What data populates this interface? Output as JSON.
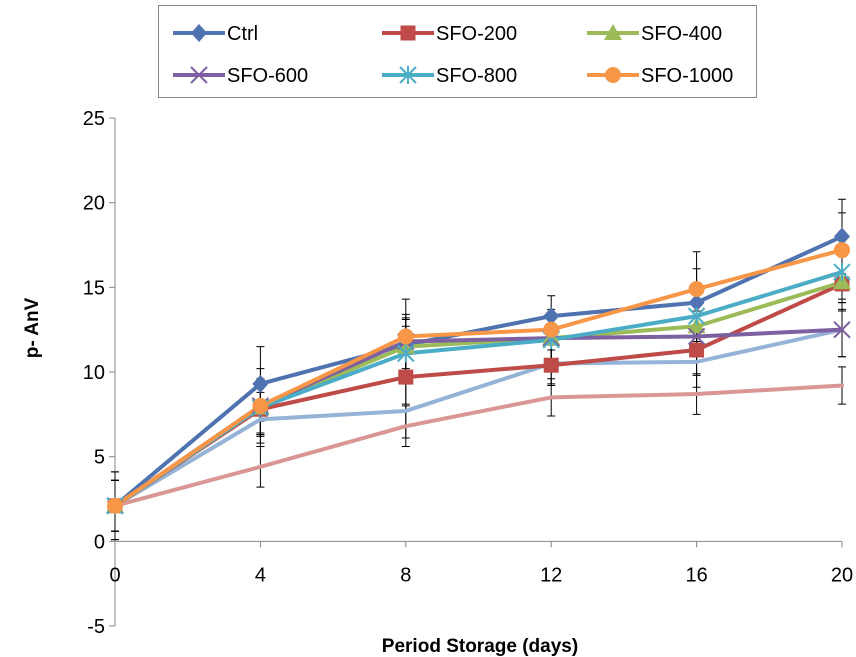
{
  "chart_data": {
    "type": "line",
    "title": "",
    "xlabel": "Period Storage (days)",
    "ylabel": "p- AnV",
    "x": [
      0,
      4,
      8,
      12,
      16,
      20
    ],
    "ylim": [
      -5,
      25
    ],
    "yticks": [
      -5,
      0,
      5,
      10,
      15,
      20,
      25
    ],
    "grid": false,
    "legend_position": "top",
    "series": [
      {
        "name": "Ctrl",
        "color": "#4f73b0",
        "marker": "diamond",
        "values": [
          2.1,
          9.3,
          11.6,
          13.3,
          14.1,
          18.0
        ],
        "error": [
          2.0,
          2.2,
          1.6,
          1.2,
          2.0,
          2.2
        ]
      },
      {
        "name": "SFO-200",
        "color": "#be4b48",
        "marker": "square",
        "values": [
          2.1,
          7.8,
          9.7,
          10.4,
          11.3,
          15.2
        ],
        "error": [
          1.5,
          1.6,
          1.6,
          1.2,
          1.5,
          1.6
        ]
      },
      {
        "name": "SFO-400",
        "color": "#9bbb59",
        "marker": "triangle",
        "values": [
          2.1,
          7.9,
          11.5,
          12.0,
          12.7,
          15.3
        ],
        "error": [
          1.5,
          1.6,
          1.6,
          1.2,
          1.5,
          1.6
        ]
      },
      {
        "name": "SFO-600",
        "color": "#7d60a0",
        "marker": "x",
        "values": [
          2.1,
          8.0,
          11.8,
          12.0,
          12.1,
          12.5
        ],
        "error": [
          1.5,
          1.6,
          1.6,
          1.2,
          1.5,
          1.6
        ]
      },
      {
        "name": "SFO-800",
        "color": "#4bacc6",
        "marker": "asterisk",
        "values": [
          2.1,
          7.9,
          11.1,
          11.9,
          13.3,
          15.9
        ],
        "error": [
          1.5,
          1.6,
          1.6,
          1.2,
          1.5,
          1.6
        ]
      },
      {
        "name": "SFO-1000",
        "color": "#f79646",
        "marker": "circle",
        "values": [
          2.1,
          8.0,
          12.1,
          12.5,
          14.9,
          17.2
        ],
        "error": [
          2.0,
          2.2,
          2.2,
          1.2,
          2.2,
          2.2
        ]
      },
      {
        "name": "",
        "color": "#95b3d7",
        "marker": "none",
        "values": [
          2.1,
          7.2,
          7.7,
          10.5,
          10.6,
          12.5
        ],
        "error": [
          1.5,
          1.6,
          1.6,
          1.2,
          1.5,
          1.6
        ]
      },
      {
        "name": "",
        "color": "#d99694",
        "marker": "none",
        "values": [
          2.1,
          4.4,
          6.8,
          8.5,
          8.7,
          9.2
        ],
        "error": [
          1.5,
          1.2,
          1.2,
          1.1,
          1.2,
          1.1
        ]
      }
    ]
  }
}
